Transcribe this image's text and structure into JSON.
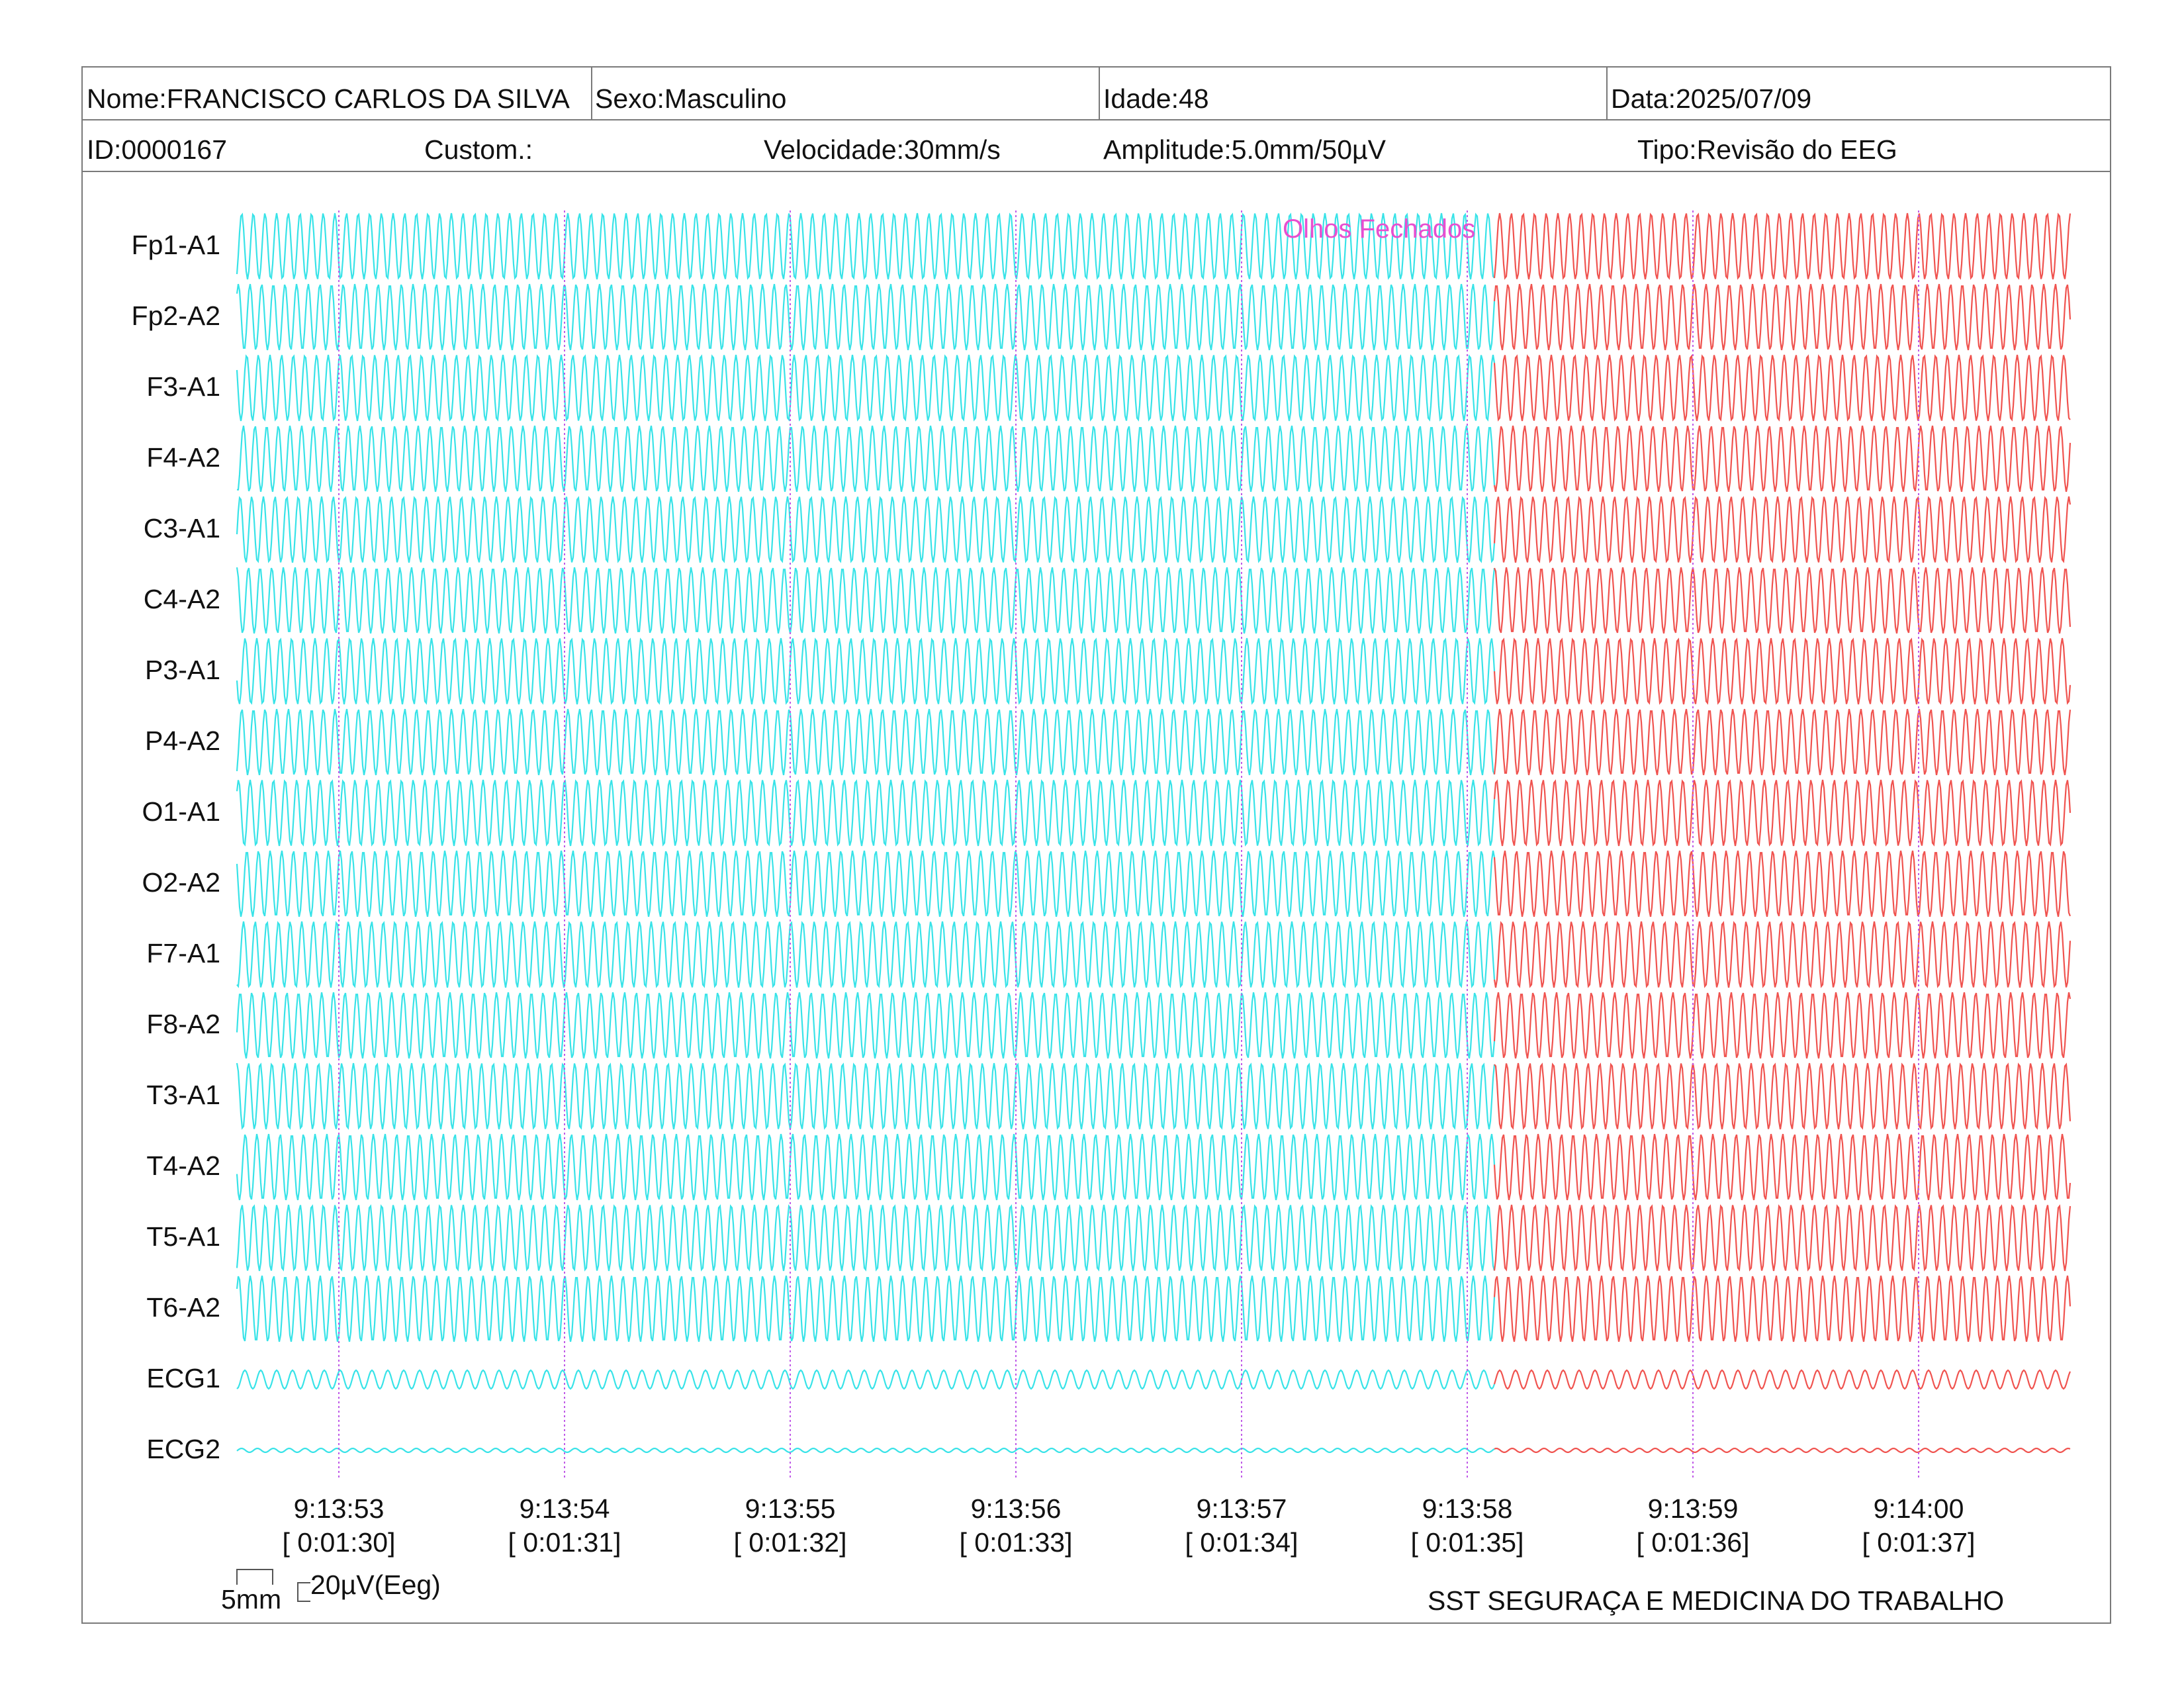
{
  "header": {
    "name": "Nome:FRANCISCO CARLOS DA SILVA",
    "sex": "Sexo:Masculino",
    "age": "Idade:48",
    "date": "Data:2025/07/09",
    "id": "ID:0000167",
    "custom": "Custom.:",
    "speed": "Velocidade:30mm/s",
    "amplitude": "Amplitude:5.0mm/50µV",
    "type": "Tipo:Revisão do EEG"
  },
  "channels": [
    "Fp1-A1",
    "Fp2-A2",
    "F3-A1",
    "F4-A2",
    "C3-A1",
    "C4-A2",
    "P3-A1",
    "P4-A2",
    "O1-A1",
    "O2-A2",
    "F7-A1",
    "F8-A2",
    "T3-A1",
    "T4-A2",
    "T5-A1",
    "T6-A2",
    "ECG1",
    "ECG2"
  ],
  "event": {
    "label": "Olhos Fechados"
  },
  "time_marks": [
    {
      "clock": "9:13:53",
      "elapsed": "[ 0:01:30]"
    },
    {
      "clock": "9:13:54",
      "elapsed": "[ 0:01:31]"
    },
    {
      "clock": "9:13:55",
      "elapsed": "[ 0:01:32]"
    },
    {
      "clock": "9:13:56",
      "elapsed": "[ 0:01:33]"
    },
    {
      "clock": "9:13:57",
      "elapsed": "[ 0:01:34]"
    },
    {
      "clock": "9:13:58",
      "elapsed": "[ 0:01:35]"
    },
    {
      "clock": "9:13:59",
      "elapsed": "[ 0:01:36]"
    },
    {
      "clock": "9:14:00",
      "elapsed": "[ 0:01:37]"
    }
  ],
  "calibration": {
    "time_label": "5mm",
    "amp_label": "20µV(Eeg)"
  },
  "footer": {
    "company": "SST SEGURAÇA E MEDICINA DO TRABALHO"
  },
  "colors": {
    "trace_before": "#38e3e8",
    "trace_after": "#f0534f",
    "marker": "#c05ae8",
    "event": "#e84fd0"
  }
}
